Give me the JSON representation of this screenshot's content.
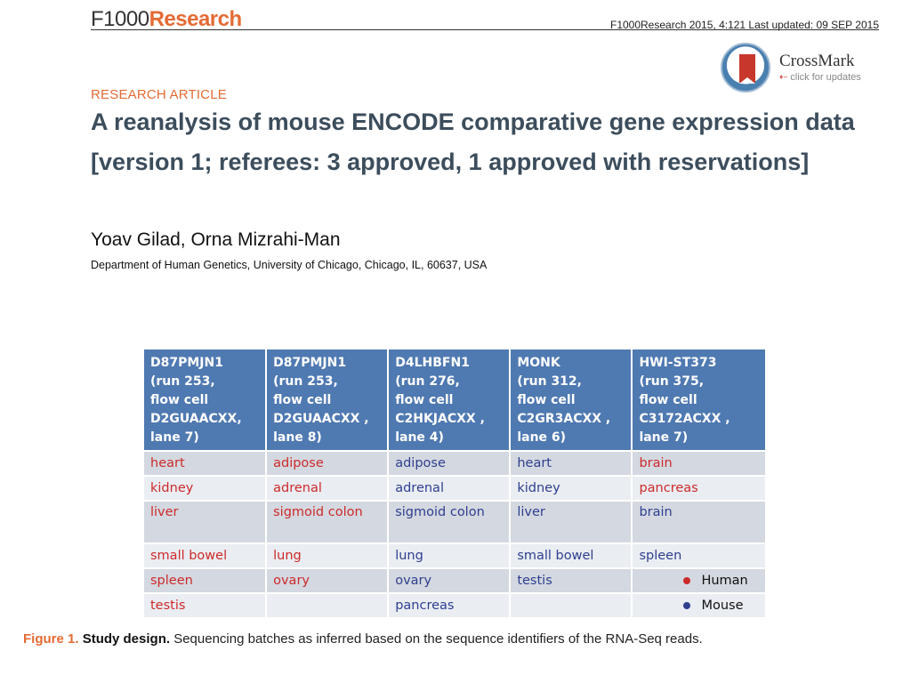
{
  "header": {
    "logo_prefix": "F1000",
    "logo_suffix": "Research",
    "citation": "F1000Research 2015, 4:121 Last updated: 09 SEP 2015"
  },
  "crossmark": {
    "title": "CrossMark",
    "subtitle": "click for updates"
  },
  "article": {
    "type": "RESEARCH ARTICLE",
    "title": "A reanalysis of mouse ENCODE comparative gene expression data [version 1; referees: 3 approved, 1 approved with reservations]",
    "authors": "Yoav Gilad, Orna Mizrahi-Man",
    "affiliation": "Department of Human Genetics, University of Chicago, Chicago, IL, 60637, USA"
  },
  "table": {
    "headers": [
      "D87PMJN1\n(run 253,\nflow cell\nD2GUAACXX,\nlane 7)",
      "D87PMJN1\n(run 253,\n flow cell\nD2GUAACXX ,\nlane 8)",
      "D4LHBFN1\n(run 276,\n flow cell\nC2HKJACXX ,\nlane 4)",
      "MONK\n (run 312,\nflow cell\nC2GR3ACXX ,\nlane 6)",
      "HWI-ST373\n (run 375,\nflow cell\nC3172ACXX ,\nlane 7)"
    ],
    "rows": [
      [
        {
          "text": "heart",
          "species": "human"
        },
        {
          "text": "adipose",
          "species": "human"
        },
        {
          "text": "adipose",
          "species": "mouse"
        },
        {
          "text": "heart",
          "species": "mouse"
        },
        {
          "text": "brain",
          "species": "human"
        }
      ],
      [
        {
          "text": "kidney",
          "species": "human"
        },
        {
          "text": "adrenal",
          "species": "human"
        },
        {
          "text": "adrenal",
          "species": "mouse"
        },
        {
          "text": "kidney",
          "species": "mouse"
        },
        {
          "text": "pancreas",
          "species": "human"
        }
      ],
      [
        {
          "text": "liver",
          "species": "human"
        },
        {
          "text": "sigmoid colon",
          "species": "human"
        },
        {
          "text": "sigmoid colon",
          "species": "mouse"
        },
        {
          "text": "liver",
          "species": "mouse"
        },
        {
          "text": "brain",
          "species": "mouse"
        }
      ],
      [
        {
          "text": "small bowel",
          "species": "human"
        },
        {
          "text": "lung",
          "species": "human"
        },
        {
          "text": "lung",
          "species": "mouse"
        },
        {
          "text": "small bowel",
          "species": "mouse"
        },
        {
          "text": "spleen",
          "species": "mouse"
        }
      ],
      [
        {
          "text": "spleen",
          "species": "human"
        },
        {
          "text": "ovary",
          "species": "human"
        },
        {
          "text": "ovary",
          "species": "mouse"
        },
        {
          "text": "testis",
          "species": "mouse"
        },
        {
          "text": "",
          "species": "legend-human"
        }
      ],
      [
        {
          "text": "testis",
          "species": "human"
        },
        {
          "text": "",
          "species": ""
        },
        {
          "text": "pancreas",
          "species": "mouse"
        },
        {
          "text": "",
          "species": ""
        },
        {
          "text": "",
          "species": "legend-mouse"
        }
      ]
    ],
    "legend": {
      "human": "Human",
      "mouse": "Mouse"
    }
  },
  "caption": {
    "label": "Figure 1.",
    "heading": "Study design.",
    "text": "Sequencing batches as inferred based on the sequence identifiers of the RNA-Seq reads."
  },
  "colors": {
    "accent": "#e46b35",
    "header_fill": "#4f79b1",
    "human": "#cc2b2b",
    "mouse": "#2e3f8f"
  }
}
